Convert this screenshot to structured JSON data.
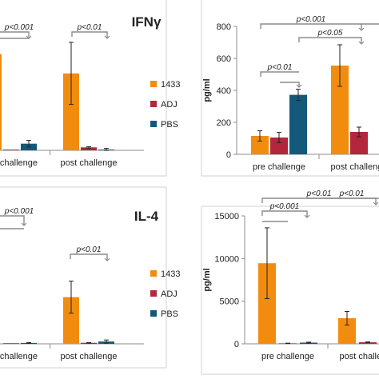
{
  "colors": {
    "series_1433": "#f28c0f",
    "series_adj": "#b3263c",
    "series_pbs": "#14597a",
    "axis": "#8c8c8c",
    "bracket": "#8c8c8c",
    "error_bar": "#222222"
  },
  "titles": {
    "top": "IFNγ",
    "bottom": "IL-4"
  },
  "chart_data": [
    {
      "id": "ifng_left",
      "type": "bar",
      "categories": [
        "pre challenge",
        "post challenge"
      ],
      "series": [
        {
          "name": "1433",
          "values": [
            650,
            520
          ],
          "errors": [
            0,
            210
          ]
        },
        {
          "name": "ADJ",
          "values": [
            5,
            20
          ],
          "errors": [
            0,
            5
          ]
        },
        {
          "name": "PBS",
          "values": [
            45,
            5
          ],
          "errors": [
            22,
            8
          ]
        }
      ],
      "ylim": [
        0,
        800
      ],
      "legend": [
        "1433",
        "ADJ",
        "PBS"
      ],
      "legend_placement": "right",
      "annotations": [
        "p<0.001",
        "p<0.01"
      ]
    },
    {
      "id": "ifng_right",
      "type": "bar",
      "categories": [
        "pre challenge",
        "post challenge"
      ],
      "series": [
        {
          "name": "1433",
          "values": [
            115,
            555
          ],
          "errors": [
            32,
            130
          ]
        },
        {
          "name": "ADJ",
          "values": [
            105,
            140
          ],
          "errors": [
            32,
            30
          ]
        },
        {
          "name": "PBS",
          "values": [
            372,
            null
          ],
          "errors": [
            35,
            null
          ]
        }
      ],
      "ylabel": "pg/ml",
      "yticks": [
        0,
        200,
        400,
        600,
        800
      ],
      "ylim": [
        0,
        800
      ],
      "annotations": [
        "p<0.01",
        "p<0.001",
        "p<0.05"
      ]
    },
    {
      "id": "il4_left",
      "type": "bar",
      "categories": [
        "pre challenge",
        "post challenge"
      ],
      "series": [
        {
          "name": "1433",
          "values": [
            0,
            3650
          ],
          "errors": [
            0,
            1250
          ]
        },
        {
          "name": "ADJ",
          "values": [
            50,
            80
          ],
          "errors": [
            0,
            20
          ]
        },
        {
          "name": "PBS",
          "values": [
            70,
            180
          ],
          "errors": [
            30,
            120
          ]
        }
      ],
      "ylim": [
        0,
        10000
      ],
      "legend": [
        "1433",
        "ADJ",
        "PBS"
      ],
      "legend_placement": "right",
      "annotations": [
        "p<0.001",
        "p<0.01"
      ]
    },
    {
      "id": "il4_right",
      "type": "bar",
      "categories": [
        "pre challenge",
        "post challenge"
      ],
      "series": [
        {
          "name": "1433",
          "values": [
            9450,
            3000
          ],
          "errors": [
            4150,
            800
          ]
        },
        {
          "name": "ADJ",
          "values": [
            60,
            180
          ],
          "errors": [
            20,
            40
          ]
        },
        {
          "name": "PBS",
          "values": [
            140,
            null
          ],
          "errors": [
            50,
            null
          ]
        }
      ],
      "ylabel": "pg/ml",
      "yticks": [
        0,
        5000,
        10000,
        15000
      ],
      "ylim": [
        0,
        15000
      ],
      "annotations": [
        "p<0.001",
        "p<0.01",
        "p<0.01"
      ]
    }
  ]
}
